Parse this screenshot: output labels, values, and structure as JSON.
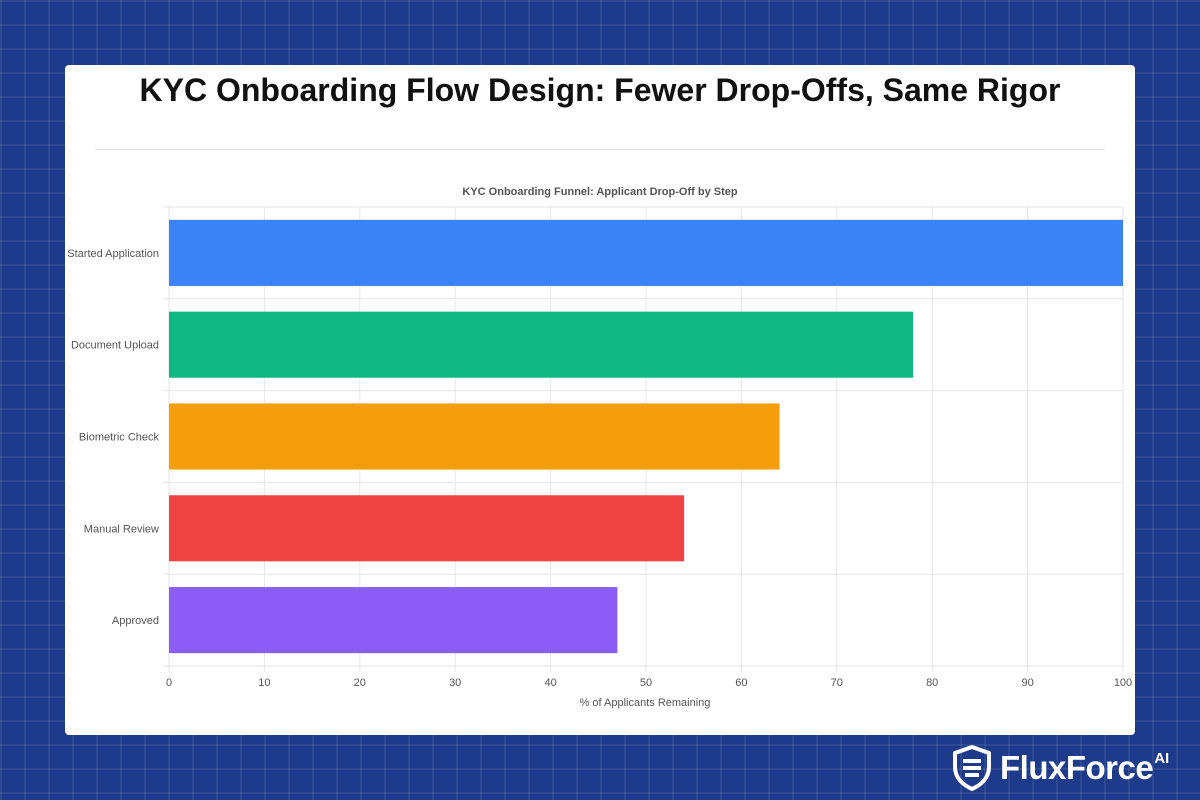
{
  "page": {
    "title": "KYC Onboarding Flow Design: Fewer Drop-Offs, Same Rigor"
  },
  "brand": {
    "name": "FluxForce",
    "superscript": "AI",
    "logo_icon": "shield-logo-icon"
  },
  "chart_data": {
    "type": "bar",
    "orientation": "horizontal",
    "title": "KYC Onboarding Funnel: Applicant Drop-Off by Step",
    "xlabel": "% of Applicants Remaining",
    "ylabel": "",
    "categories": [
      "Started Application",
      "Document Upload",
      "Biometric Check",
      "Manual Review",
      "Approved"
    ],
    "values": [
      100,
      78,
      64,
      54,
      47
    ],
    "colors": [
      "#3b82f6",
      "#10b981",
      "#f59e0b",
      "#ef4444",
      "#8b5cf6"
    ],
    "xlim": [
      0,
      100
    ],
    "xticks": [
      0,
      10,
      20,
      30,
      40,
      50,
      60,
      70,
      80,
      90,
      100
    ],
    "grid": true,
    "legend": "none"
  }
}
